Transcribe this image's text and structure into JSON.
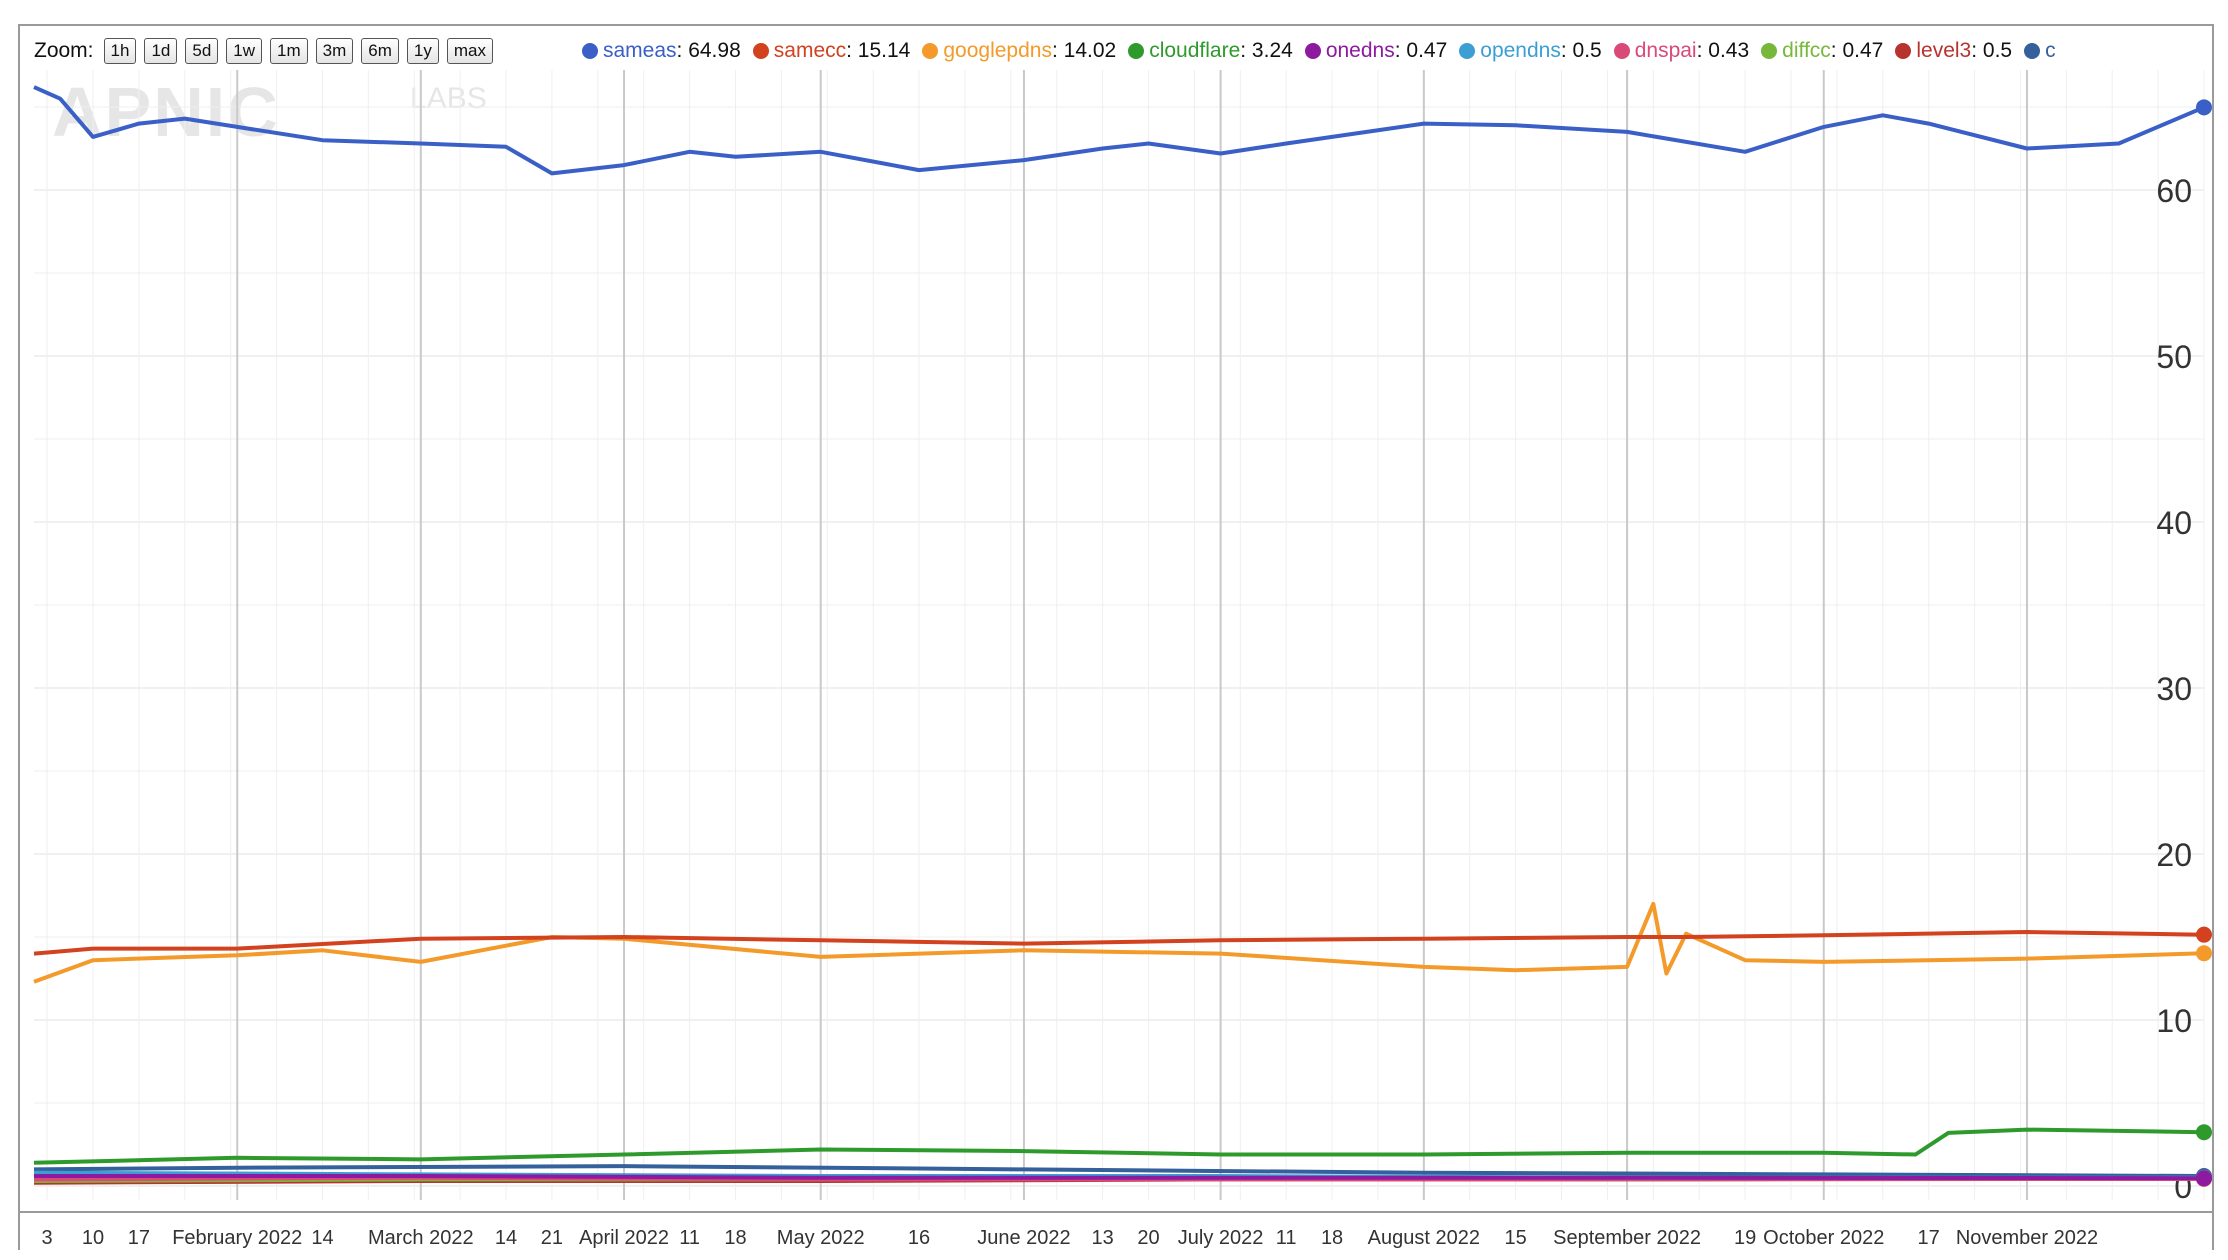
{
  "zoom": {
    "label": "Zoom:",
    "buttons": [
      "1h",
      "1d",
      "5d",
      "1w",
      "1m",
      "3m",
      "6m",
      "1y",
      "max"
    ]
  },
  "watermark": {
    "brand": "APNIC",
    "sub": "LABS"
  },
  "legend": [
    {
      "name": "sameas",
      "value": "64.98",
      "color": "#3a5fc7"
    },
    {
      "name": "samecc",
      "value": "15.14",
      "color": "#d2421f"
    },
    {
      "name": "googlepdns",
      "value": "14.02",
      "color": "#f39a2a"
    },
    {
      "name": "cloudflare",
      "value": "3.24",
      "color": "#2f9a2c"
    },
    {
      "name": "onedns",
      "value": "0.47",
      "color": "#8e1aa0"
    },
    {
      "name": "opendns",
      "value": "0.5",
      "color": "#3b9fd4"
    },
    {
      "name": "dnspai",
      "value": "0.43",
      "color": "#d94a78"
    },
    {
      "name": "diffcc",
      "value": "0.47",
      "color": "#77b83a"
    },
    {
      "name": "level3",
      "value": "0.5",
      "color": "#b8322e"
    },
    {
      "name": "c",
      "value": "",
      "color": "#34609c"
    }
  ],
  "chart_data": {
    "type": "line",
    "title": "",
    "xlabel": "",
    "ylabel": "",
    "xlim": [
      "2022-01-01",
      "2022-11-28"
    ],
    "ylim": [
      0,
      68
    ],
    "y_ticks": [
      0,
      10,
      20,
      30,
      40,
      50,
      60
    ],
    "x_ticks": [
      {
        "date": "2022-01-03",
        "label": "3"
      },
      {
        "date": "2022-01-10",
        "label": "10"
      },
      {
        "date": "2022-01-17",
        "label": "17"
      },
      {
        "date": "2022-02-01",
        "label": "February 2022"
      },
      {
        "date": "2022-02-14",
        "label": "14"
      },
      {
        "date": "2022-03-01",
        "label": "March 2022"
      },
      {
        "date": "2022-03-14",
        "label": "14"
      },
      {
        "date": "2022-03-21",
        "label": "21"
      },
      {
        "date": "2022-04-01",
        "label": "April 2022"
      },
      {
        "date": "2022-04-11",
        "label": "11"
      },
      {
        "date": "2022-04-18",
        "label": "18"
      },
      {
        "date": "2022-05-01",
        "label": "May 2022"
      },
      {
        "date": "2022-05-16",
        "label": "16"
      },
      {
        "date": "2022-06-01",
        "label": "June 2022"
      },
      {
        "date": "2022-06-13",
        "label": "13"
      },
      {
        "date": "2022-06-20",
        "label": "20"
      },
      {
        "date": "2022-07-01",
        "label": "July 2022"
      },
      {
        "date": "2022-07-11",
        "label": "11"
      },
      {
        "date": "2022-07-18",
        "label": "18"
      },
      {
        "date": "2022-08-01",
        "label": "August 2022"
      },
      {
        "date": "2022-08-15",
        "label": "15"
      },
      {
        "date": "2022-09-01",
        "label": "September 2022"
      },
      {
        "date": "2022-09-19",
        "label": "19"
      },
      {
        "date": "2022-10-01",
        "label": "October 2022"
      },
      {
        "date": "2022-10-17",
        "label": "17"
      },
      {
        "date": "2022-11-01",
        "label": "November 2022"
      }
    ],
    "grid": true,
    "legend_position": "top",
    "series": [
      {
        "name": "sameas",
        "color": "#3a5fc7",
        "x": [
          "2022-01-01",
          "2022-01-05",
          "2022-01-10",
          "2022-01-17",
          "2022-01-24",
          "2022-02-01",
          "2022-02-14",
          "2022-03-01",
          "2022-03-14",
          "2022-03-21",
          "2022-04-01",
          "2022-04-11",
          "2022-04-18",
          "2022-05-01",
          "2022-05-16",
          "2022-06-01",
          "2022-06-13",
          "2022-06-20",
          "2022-07-01",
          "2022-07-11",
          "2022-07-18",
          "2022-08-01",
          "2022-08-15",
          "2022-09-01",
          "2022-09-19",
          "2022-10-01",
          "2022-10-10",
          "2022-10-17",
          "2022-11-01",
          "2022-11-15",
          "2022-11-28"
        ],
        "values": [
          66.2,
          65.5,
          63.2,
          64.0,
          64.3,
          63.8,
          63.0,
          62.8,
          62.6,
          61.0,
          61.5,
          62.3,
          62.0,
          62.3,
          61.2,
          61.8,
          62.5,
          62.8,
          62.2,
          62.8,
          63.2,
          64.0,
          63.9,
          63.5,
          62.3,
          63.8,
          64.5,
          64.0,
          62.5,
          62.8,
          64.98
        ]
      },
      {
        "name": "samecc",
        "color": "#d2421f",
        "x": [
          "2022-01-01",
          "2022-01-10",
          "2022-02-01",
          "2022-03-01",
          "2022-04-01",
          "2022-05-01",
          "2022-06-01",
          "2022-07-01",
          "2022-08-01",
          "2022-09-01",
          "2022-09-06",
          "2022-09-10",
          "2022-10-01",
          "2022-11-01",
          "2022-11-28"
        ],
        "values": [
          14.0,
          14.3,
          14.3,
          14.9,
          15.0,
          14.8,
          14.6,
          14.8,
          14.9,
          15.0,
          15.0,
          15.0,
          15.1,
          15.3,
          15.14
        ]
      },
      {
        "name": "googlepdns",
        "color": "#f39a2a",
        "x": [
          "2022-01-01",
          "2022-01-10",
          "2022-02-01",
          "2022-02-14",
          "2022-03-01",
          "2022-03-21",
          "2022-04-01",
          "2022-05-01",
          "2022-06-01",
          "2022-07-01",
          "2022-08-01",
          "2022-08-15",
          "2022-09-01",
          "2022-09-05",
          "2022-09-07",
          "2022-09-10",
          "2022-09-19",
          "2022-10-01",
          "2022-11-01",
          "2022-11-28"
        ],
        "values": [
          12.3,
          13.6,
          13.9,
          14.2,
          13.5,
          15.0,
          14.9,
          13.8,
          14.2,
          14.0,
          13.2,
          13.0,
          13.2,
          17.0,
          12.8,
          15.2,
          13.6,
          13.5,
          13.7,
          14.02
        ]
      },
      {
        "name": "cloudflare",
        "color": "#2f9a2c",
        "x": [
          "2022-01-01",
          "2022-02-01",
          "2022-03-01",
          "2022-04-01",
          "2022-05-01",
          "2022-06-01",
          "2022-07-01",
          "2022-08-01",
          "2022-09-01",
          "2022-10-01",
          "2022-10-15",
          "2022-10-20",
          "2022-11-01",
          "2022-11-28"
        ],
        "values": [
          1.4,
          1.7,
          1.6,
          1.9,
          2.2,
          2.1,
          1.9,
          1.9,
          2.0,
          2.0,
          1.9,
          3.2,
          3.4,
          3.24
        ]
      },
      {
        "name": "onedns",
        "color": "#8e1aa0",
        "x": [
          "2022-01-01",
          "2022-03-01",
          "2022-05-01",
          "2022-07-01",
          "2022-09-01",
          "2022-11-28"
        ],
        "values": [
          0.6,
          0.6,
          0.5,
          0.5,
          0.5,
          0.47
        ]
      },
      {
        "name": "opendns",
        "color": "#3b9fd4",
        "x": [
          "2022-01-01",
          "2022-03-01",
          "2022-05-01",
          "2022-07-01",
          "2022-09-01",
          "2022-11-28"
        ],
        "values": [
          0.8,
          0.7,
          0.6,
          0.6,
          0.5,
          0.5
        ]
      },
      {
        "name": "dnspai",
        "color": "#d94a78",
        "x": [
          "2022-01-01",
          "2022-03-01",
          "2022-05-01",
          "2022-07-01",
          "2022-09-01",
          "2022-11-28"
        ],
        "values": [
          0.4,
          0.5,
          0.4,
          0.4,
          0.4,
          0.43
        ]
      },
      {
        "name": "diffcc",
        "color": "#77b83a",
        "x": [
          "2022-01-01",
          "2022-03-01",
          "2022-05-01",
          "2022-07-01",
          "2022-09-01",
          "2022-11-28"
        ],
        "values": [
          0.3,
          0.4,
          0.4,
          0.5,
          0.4,
          0.47
        ]
      },
      {
        "name": "level3",
        "color": "#b8322e",
        "x": [
          "2022-01-01",
          "2022-03-01",
          "2022-05-01",
          "2022-07-01",
          "2022-09-01",
          "2022-11-28"
        ],
        "values": [
          0.2,
          0.3,
          0.3,
          0.4,
          0.4,
          0.5
        ]
      },
      {
        "name": "c",
        "color": "#34609c",
        "x": [
          "2022-01-01",
          "2022-02-01",
          "2022-04-01",
          "2022-06-01",
          "2022-08-01",
          "2022-10-01",
          "2022-11-28"
        ],
        "values": [
          1.0,
          1.1,
          1.2,
          1.0,
          0.8,
          0.7,
          0.6
        ]
      }
    ]
  }
}
